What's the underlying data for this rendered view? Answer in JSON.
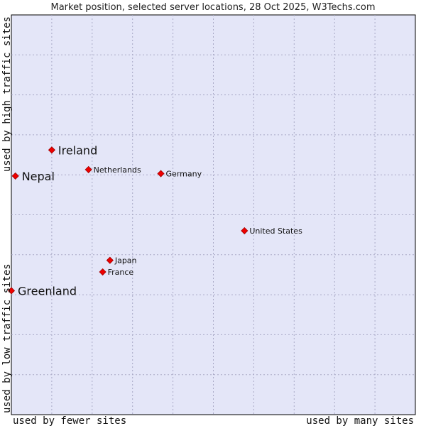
{
  "chart_data": {
    "type": "scatter",
    "title": "Market position, selected server locations, 28 Oct 2025, W3Techs.com",
    "xlabel_left": "used by fewer sites",
    "xlabel_right": "used by many sites",
    "ylabel_low": "used by low traffic sites",
    "ylabel_high": "used by high traffic sites",
    "xlim": [
      0,
      10
    ],
    "ylim": [
      0,
      10
    ],
    "grid": true,
    "colors": {
      "plot_bg": "#e4e6f8",
      "grid": "#a9a9c6",
      "point": "#ee0000",
      "point_stroke": "#9c0000"
    },
    "points": [
      {
        "label": "Ireland",
        "x": 1.0,
        "y": 6.62,
        "highlight": true
      },
      {
        "label": "Nepal",
        "x": 0.1,
        "y": 5.97,
        "highlight": true
      },
      {
        "label": "Netherlands",
        "x": 1.91,
        "y": 6.13,
        "highlight": false
      },
      {
        "label": "Germany",
        "x": 3.7,
        "y": 6.03,
        "highlight": false
      },
      {
        "label": "United States",
        "x": 5.77,
        "y": 4.6,
        "highlight": false
      },
      {
        "label": "Japan",
        "x": 2.44,
        "y": 3.86,
        "highlight": false
      },
      {
        "label": "France",
        "x": 2.26,
        "y": 3.57,
        "highlight": false
      },
      {
        "label": "Greenland",
        "x": 0.0,
        "y": 3.1,
        "highlight": true
      }
    ]
  }
}
